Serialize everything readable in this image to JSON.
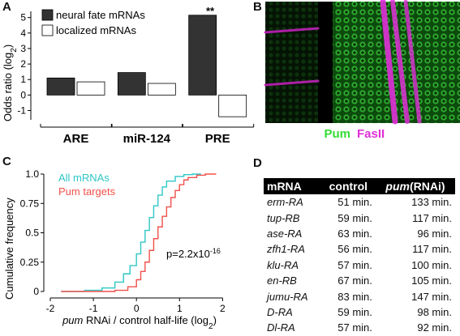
{
  "panels": {
    "a": {
      "label": "A"
    },
    "b": {
      "label": "B"
    },
    "c": {
      "label": "C"
    },
    "d": {
      "label": "D"
    }
  },
  "panel_a": {
    "ylabel_main": "Odds ratio (log",
    "ylabel_sub": "2",
    "ylabel_close": ")",
    "legend": [
      "neural fate mRNAs",
      "localized mRNAs"
    ],
    "significance": "**"
  },
  "panel_b": {
    "caption_green": "Pum",
    "caption_magenta": "FasII",
    "colors": {
      "green": "#33dd33",
      "magenta": "#e02fd8"
    }
  },
  "panel_c": {
    "ylabel": "Cumulative frequency",
    "xlabel_italic": "pum",
    "xlabel_rest": " RNAi / control half-life (log",
    "xlabel_sub": "2",
    "xlabel_close": ")",
    "legend": [
      "All mRNAs",
      "Pum targets"
    ],
    "pvalue_main": "p=2.2x10",
    "pvalue_exp": "-16",
    "colors": {
      "all": "#2fc6c6",
      "targets": "#f0504a"
    }
  },
  "chart_data": [
    {
      "type": "bar",
      "categories": [
        "ARE",
        "miR-124",
        "PRE"
      ],
      "series": [
        {
          "name": "neural fate mRNAs",
          "values": [
            1.1,
            1.45,
            5.15
          ]
        },
        {
          "name": "localized mRNAs",
          "values": [
            0.85,
            0.75,
            -1.4
          ]
        }
      ],
      "ylim": [
        -1.6,
        5.4
      ],
      "yticks": [
        -1,
        0,
        1,
        2,
        3,
        4,
        5
      ],
      "colors": {
        "neural fate mRNAs": "#333333",
        "localized mRNAs": "#ffffff"
      }
    },
    {
      "type": "line",
      "xlim": [
        -2,
        2.2
      ],
      "ylim": [
        0,
        1.0
      ],
      "xticks": [
        -2,
        -1,
        0,
        1,
        2
      ],
      "yticks": [
        0,
        0.25,
        0.5,
        0.75,
        1.0
      ],
      "ytick_labels": [
        "0",
        "0.25",
        "0.5",
        "0.75",
        "1.0"
      ],
      "series": [
        {
          "name": "All mRNAs",
          "x": [
            -1.75,
            -1.2,
            -0.8,
            -0.5,
            -0.3,
            -0.15,
            0.0,
            0.1,
            0.2,
            0.3,
            0.4,
            0.5,
            0.6,
            0.7,
            0.9,
            1.1,
            1.3,
            1.5
          ],
          "y": [
            0.0,
            0.01,
            0.03,
            0.08,
            0.15,
            0.22,
            0.32,
            0.42,
            0.52,
            0.63,
            0.73,
            0.82,
            0.89,
            0.94,
            0.98,
            0.995,
            1.0,
            1.0
          ]
        },
        {
          "name": "Pum targets",
          "x": [
            -1.75,
            -0.5,
            -0.2,
            0.0,
            0.1,
            0.2,
            0.3,
            0.4,
            0.5,
            0.6,
            0.7,
            0.8,
            0.9,
            1.0,
            1.1,
            1.2,
            1.4,
            1.6,
            1.85
          ],
          "y": [
            0.0,
            0.01,
            0.04,
            0.1,
            0.17,
            0.25,
            0.35,
            0.45,
            0.55,
            0.64,
            0.72,
            0.8,
            0.86,
            0.91,
            0.95,
            0.97,
            0.99,
            1.0,
            1.0
          ]
        }
      ]
    },
    {
      "type": "table",
      "headers": [
        "mRNA",
        "control",
        "pum",
        "(RNAi)"
      ],
      "rows": [
        [
          "erm-RA",
          "51 min.",
          "133 min."
        ],
        [
          "tup-RB",
          "59 min.",
          "117 min."
        ],
        [
          "ase-RA",
          "63 min.",
          "96 min."
        ],
        [
          "zfh1-RA",
          "56 min.",
          "117 min."
        ],
        [
          "klu-RA",
          "57 min.",
          "100 min."
        ],
        [
          "en-RB",
          "67 min.",
          "105 min."
        ],
        [
          "jumu-RA",
          "83 min.",
          "147 min."
        ],
        [
          "D-RA",
          "59 min.",
          "98 min."
        ],
        [
          "Dl-RA",
          "57 min.",
          "92 min."
        ]
      ]
    }
  ]
}
